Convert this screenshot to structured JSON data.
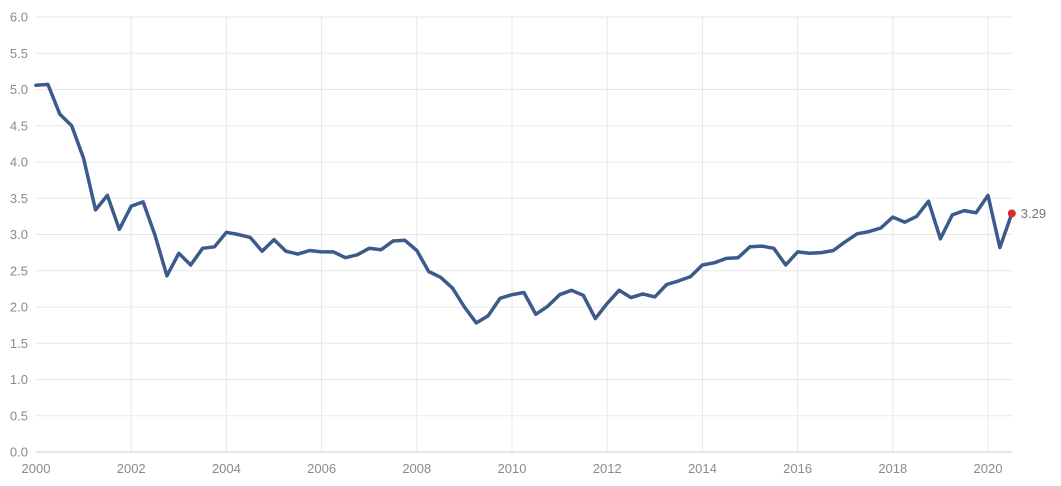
{
  "chart_data": {
    "type": "line",
    "title": "",
    "xlabel": "",
    "ylabel": "",
    "x_ticks": [
      "2000",
      "2002",
      "2004",
      "2006",
      "2008",
      "2010",
      "2012",
      "2014",
      "2016",
      "2018",
      "2020"
    ],
    "y_ticks": [
      "0.0",
      "0.5",
      "1.0",
      "1.5",
      "2.0",
      "2.5",
      "3.0",
      "3.5",
      "4.0",
      "4.5",
      "5.0",
      "5.5",
      "6.0"
    ],
    "xlim": [
      2000,
      2020.5
    ],
    "ylim": [
      0,
      6
    ],
    "grid": true,
    "legend": "none",
    "line_color": "#3d5a8c",
    "last_point_color": "#e0292b",
    "last_value_label": "3.29",
    "series": [
      {
        "x": [
          2000.0,
          2000.25,
          2000.5,
          2000.75,
          2001.0,
          2001.25,
          2001.5,
          2001.75,
          2002.0,
          2002.25,
          2002.5,
          2002.75,
          2003.0,
          2003.25,
          2003.5,
          2003.75,
          2004.0,
          2004.25,
          2004.5,
          2004.75,
          2005.0,
          2005.25,
          2005.5,
          2005.75,
          2006.0,
          2006.25,
          2006.5,
          2006.75,
          2007.0,
          2007.25,
          2007.5,
          2007.75,
          2008.0,
          2008.25,
          2008.5,
          2008.75,
          2009.0,
          2009.25,
          2009.5,
          2009.75,
          2010.0,
          2010.25,
          2010.5,
          2010.75,
          2011.0,
          2011.25,
          2011.5,
          2011.75,
          2012.0,
          2012.25,
          2012.5,
          2012.75,
          2013.0,
          2013.25,
          2013.5,
          2013.75,
          2014.0,
          2014.25,
          2014.5,
          2014.75,
          2015.0,
          2015.25,
          2015.5,
          2015.75,
          2016.0,
          2016.25,
          2016.5,
          2016.75,
          2017.0,
          2017.25,
          2017.5,
          2017.75,
          2018.0,
          2018.25,
          2018.5,
          2018.75,
          2019.0,
          2019.25,
          2019.5,
          2019.75,
          2020.0,
          2020.25,
          2020.5
        ],
        "values": [
          5.06,
          5.07,
          4.66,
          4.5,
          4.05,
          3.34,
          3.54,
          3.07,
          3.39,
          3.45,
          2.99,
          2.43,
          2.74,
          2.58,
          2.81,
          2.83,
          3.03,
          3.0,
          2.96,
          2.77,
          2.93,
          2.77,
          2.73,
          2.78,
          2.76,
          2.76,
          2.68,
          2.72,
          2.81,
          2.79,
          2.91,
          2.92,
          2.78,
          2.49,
          2.41,
          2.26,
          2.0,
          1.78,
          1.88,
          2.12,
          2.17,
          2.2,
          1.9,
          2.01,
          2.17,
          2.23,
          2.16,
          1.84,
          2.05,
          2.23,
          2.13,
          2.18,
          2.14,
          2.31,
          2.36,
          2.42,
          2.58,
          2.61,
          2.67,
          2.68,
          2.83,
          2.84,
          2.81,
          2.58,
          2.76,
          2.74,
          2.75,
          2.78,
          2.9,
          3.01,
          3.04,
          3.09,
          3.24,
          3.17,
          3.25,
          3.46,
          2.94,
          3.27,
          3.33,
          3.3,
          3.54,
          2.82,
          3.29
        ]
      }
    ]
  }
}
